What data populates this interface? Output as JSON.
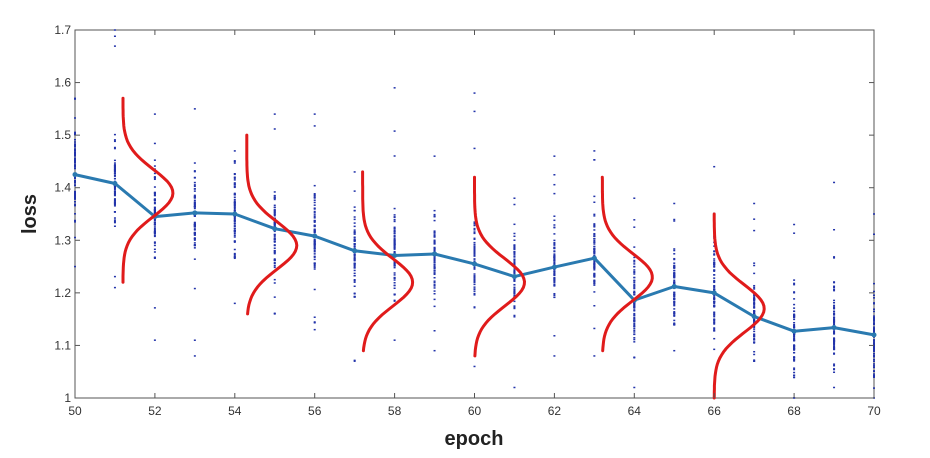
{
  "chart_data": {
    "type": "line",
    "title": "",
    "xlabel": "epoch",
    "ylabel": "loss",
    "xlim": [
      50,
      70
    ],
    "ylim": [
      1,
      1.7
    ],
    "xticks": [
      50,
      52,
      54,
      56,
      58,
      60,
      62,
      64,
      66,
      68,
      70
    ],
    "yticks": [
      1,
      1.1,
      1.2,
      1.3,
      1.4,
      1.5,
      1.6,
      1.7
    ],
    "grid": false,
    "legend": "none",
    "colors": {
      "mean_line": "#2a7ab0",
      "samples": "#2233aa",
      "distributions": "#e01b1b",
      "axes": "#555555"
    },
    "mean_line": {
      "x": [
        50,
        51,
        52,
        53,
        54,
        55,
        56,
        57,
        58,
        59,
        60,
        61,
        62,
        63,
        64,
        65,
        66,
        67,
        68,
        69,
        70
      ],
      "y": [
        1.425,
        1.408,
        1.345,
        1.352,
        1.35,
        1.322,
        1.308,
        1.28,
        1.271,
        1.274,
        1.255,
        1.231,
        1.249,
        1.266,
        1.186,
        1.212,
        1.2,
        1.155,
        1.127,
        1.134,
        1.12
      ]
    },
    "sample_ranges": [
      {
        "x": 50,
        "min": 1.25,
        "max": 1.57
      },
      {
        "x": 51,
        "min": 1.21,
        "max": 1.7
      },
      {
        "x": 52,
        "min": 1.11,
        "max": 1.54
      },
      {
        "x": 53,
        "min": 1.08,
        "max": 1.55
      },
      {
        "x": 54,
        "min": 1.18,
        "max": 1.47
      },
      {
        "x": 55,
        "min": 1.16,
        "max": 1.54
      },
      {
        "x": 56,
        "min": 1.13,
        "max": 1.54
      },
      {
        "x": 57,
        "min": 1.07,
        "max": 1.43
      },
      {
        "x": 58,
        "min": 1.11,
        "max": 1.59
      },
      {
        "x": 59,
        "min": 1.09,
        "max": 1.46
      },
      {
        "x": 60,
        "min": 1.06,
        "max": 1.58
      },
      {
        "x": 61,
        "min": 1.02,
        "max": 1.38
      },
      {
        "x": 62,
        "min": 1.08,
        "max": 1.46
      },
      {
        "x": 63,
        "min": 1.08,
        "max": 1.47
      },
      {
        "x": 64,
        "min": 1.02,
        "max": 1.38
      },
      {
        "x": 65,
        "min": 1.09,
        "max": 1.37
      },
      {
        "x": 66,
        "min": 1.0,
        "max": 1.44
      },
      {
        "x": 67,
        "min": 1.07,
        "max": 1.37
      },
      {
        "x": 68,
        "min": 1.0,
        "max": 1.33
      },
      {
        "x": 69,
        "min": 1.02,
        "max": 1.41
      },
      {
        "x": 70,
        "min": 1.0,
        "max": 1.35
      }
    ],
    "distributions": [
      {
        "x": 51.2,
        "mean": 1.39,
        "sd": 0.045,
        "ymin": 1.22,
        "ymax": 1.57
      },
      {
        "x": 54.3,
        "mean": 1.29,
        "sd": 0.045,
        "ymin": 1.16,
        "ymax": 1.5
      },
      {
        "x": 57.2,
        "mean": 1.22,
        "sd": 0.045,
        "ymin": 1.09,
        "ymax": 1.43
      },
      {
        "x": 60.0,
        "mean": 1.22,
        "sd": 0.045,
        "ymin": 1.08,
        "ymax": 1.42
      },
      {
        "x": 63.2,
        "mean": 1.23,
        "sd": 0.045,
        "ymin": 1.09,
        "ymax": 1.42
      },
      {
        "x": 66.0,
        "mean": 1.17,
        "sd": 0.045,
        "ymin": 1.0,
        "ymax": 1.35
      }
    ]
  }
}
